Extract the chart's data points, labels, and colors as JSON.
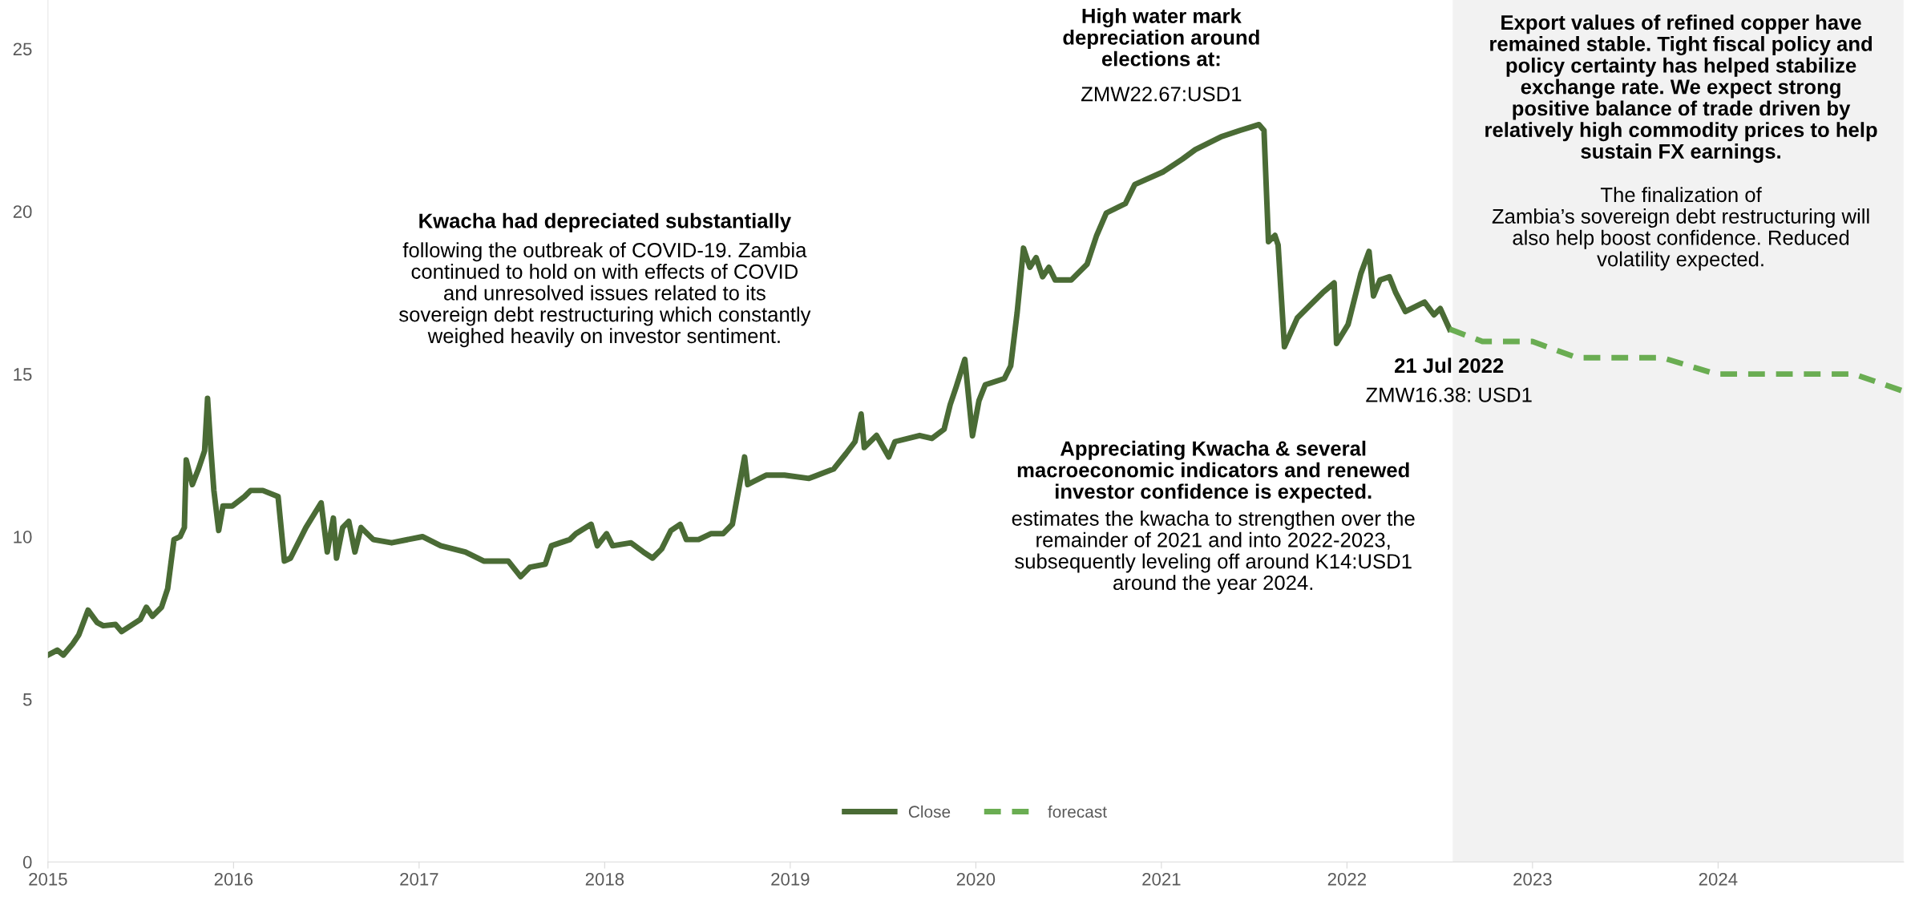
{
  "chart_data": {
    "type": "line",
    "xlim": [
      2015,
      2025
    ],
    "xticks": [
      2015,
      2016,
      2017,
      2018,
      2019,
      2020,
      2021,
      2022,
      2023,
      2024
    ],
    "ylim": [
      0,
      26.5
    ],
    "yticks": [
      0,
      5,
      10,
      15,
      20,
      25
    ],
    "grid": false,
    "legend": "bottom",
    "series": [
      {
        "name": "Close",
        "color": "#4a6b35",
        "line_style": "solid",
        "x": [
          2015.0,
          2015.05,
          2015.083,
          2015.133,
          2015.166,
          2015.216,
          2015.265,
          2015.298,
          2015.364,
          2015.397,
          2015.497,
          2015.53,
          2015.563,
          2015.612,
          2015.645,
          2015.679,
          2015.712,
          2015.735,
          2015.745,
          2015.778,
          2015.811,
          2015.844,
          2015.86,
          2015.877,
          2015.894,
          2015.92,
          2015.943,
          2015.993,
          2016.059,
          2016.092,
          2016.158,
          2016.24,
          2016.274,
          2016.307,
          2016.39,
          2016.472,
          2016.505,
          2016.538,
          2016.555,
          2016.588,
          2016.621,
          2016.654,
          2016.687,
          2016.753,
          2016.852,
          2017.018,
          2017.117,
          2017.249,
          2017.348,
          2017.48,
          2017.547,
          2017.597,
          2017.68,
          2017.713,
          2017.812,
          2017.845,
          2017.927,
          2017.96,
          2018.01,
          2018.043,
          2018.142,
          2018.208,
          2018.258,
          2018.307,
          2018.357,
          2018.407,
          2018.44,
          2018.506,
          2018.572,
          2018.638,
          2018.688,
          2018.721,
          2018.754,
          2018.771,
          2018.804,
          2018.87,
          2018.969,
          2019.101,
          2019.234,
          2019.3,
          2019.349,
          2019.382,
          2019.399,
          2019.465,
          2019.531,
          2019.564,
          2019.697,
          2019.763,
          2019.829,
          2019.862,
          2019.895,
          2019.941,
          2019.982,
          2020.017,
          2020.051,
          2020.154,
          2020.188,
          2020.223,
          2020.257,
          2020.291,
          2020.325,
          2020.36,
          2020.394,
          2020.428,
          2020.514,
          2020.6,
          2020.651,
          2020.703,
          2020.806,
          2020.857,
          2021.011,
          2021.114,
          2021.183,
          2021.32,
          2021.423,
          2021.526,
          2021.553,
          2021.577,
          2021.612,
          2021.629,
          2021.663,
          2021.732,
          2021.8,
          2021.869,
          2021.931,
          2021.944,
          2022.006,
          2022.075,
          2022.119,
          2022.143,
          2022.178,
          2022.229,
          2022.263,
          2022.315,
          2022.418,
          2022.469,
          2022.503,
          2022.553
        ],
        "values": [
          6.36,
          6.51,
          6.36,
          6.7,
          6.98,
          7.74,
          7.36,
          7.26,
          7.3,
          7.08,
          7.45,
          7.83,
          7.55,
          7.83,
          8.4,
          9.91,
          10.0,
          10.28,
          12.36,
          11.6,
          12.08,
          12.64,
          14.25,
          12.74,
          11.42,
          10.19,
          10.94,
          10.94,
          11.23,
          11.42,
          11.42,
          11.23,
          9.25,
          9.34,
          10.28,
          11.04,
          9.53,
          10.57,
          9.34,
          10.28,
          10.47,
          9.53,
          10.28,
          9.91,
          9.81,
          10.0,
          9.72,
          9.53,
          9.25,
          9.25,
          8.77,
          9.06,
          9.15,
          9.72,
          9.91,
          10.09,
          10.38,
          9.72,
          10.09,
          9.72,
          9.81,
          9.53,
          9.34,
          9.62,
          10.19,
          10.38,
          9.91,
          9.91,
          10.09,
          10.09,
          10.38,
          11.42,
          12.45,
          11.6,
          11.7,
          11.89,
          11.89,
          11.79,
          12.08,
          12.55,
          12.92,
          13.77,
          12.74,
          13.11,
          12.45,
          12.92,
          13.11,
          13.02,
          13.3,
          14.06,
          14.62,
          15.45,
          13.1,
          14.18,
          14.67,
          14.86,
          15.25,
          16.9,
          18.87,
          18.28,
          18.58,
          17.99,
          18.28,
          17.89,
          17.89,
          18.38,
          19.26,
          19.95,
          20.24,
          20.83,
          21.22,
          21.61,
          21.9,
          22.29,
          22.49,
          22.67,
          22.49,
          19.07,
          19.26,
          18.97,
          15.84,
          16.72,
          17.11,
          17.5,
          17.8,
          15.94,
          16.52,
          18.09,
          18.77,
          17.4,
          17.89,
          17.99,
          17.5,
          16.92,
          17.21,
          16.82,
          17.01,
          16.38
        ]
      },
      {
        "name": "forecast",
        "color": "#6aad52",
        "line_style": "dashed",
        "x": [
          2022.553,
          2022.73,
          2023.0,
          2023.24,
          2023.7,
          2023.99,
          2024.73,
          2025.0
        ],
        "values": [
          16.38,
          16.0,
          16.0,
          15.5,
          15.5,
          15.0,
          15.0,
          14.47
        ]
      }
    ],
    "bands": [
      {
        "axis": "x",
        "from": 2022.57,
        "to": 2025,
        "color": "#f2f2f2"
      }
    ],
    "annotations": [
      "Kwacha had depreciated substantially",
      "following the outbreak of COVID-19. Zambia\ncontinued to hold on with effects of COVID\nand unresolved issues related to its\nsovereign debt restructuring which constantly\nweighed heavily on investor sentiment.",
      "High water mark\ndepreciation around\nelections at:",
      "ZMW22.67:USD1",
      "21 Jul 2022",
      "ZMW16.38: USD1",
      "Appreciating Kwacha & several\nmacroeconomic indicators and renewed\ninvestor confidence is expected.",
      "estimates the kwacha to strengthen over the\nremainder of 2021 and into 2022-2023,\nsubsequently leveling off around K14:USD1\naround the year 2024.",
      "Export values of refined copper have\nremained stable. Tight fiscal policy and\npolicy certainty has helped stabilize\nexchange rate. We expect strong\npositive balance of trade driven by\nrelatively high commodity prices to help\nsustain FX earnings.",
      "The finalization of\nZambia’s sovereign debt restructuring will\nalso help boost confidence. Reduced\nvolatility expected."
    ]
  }
}
